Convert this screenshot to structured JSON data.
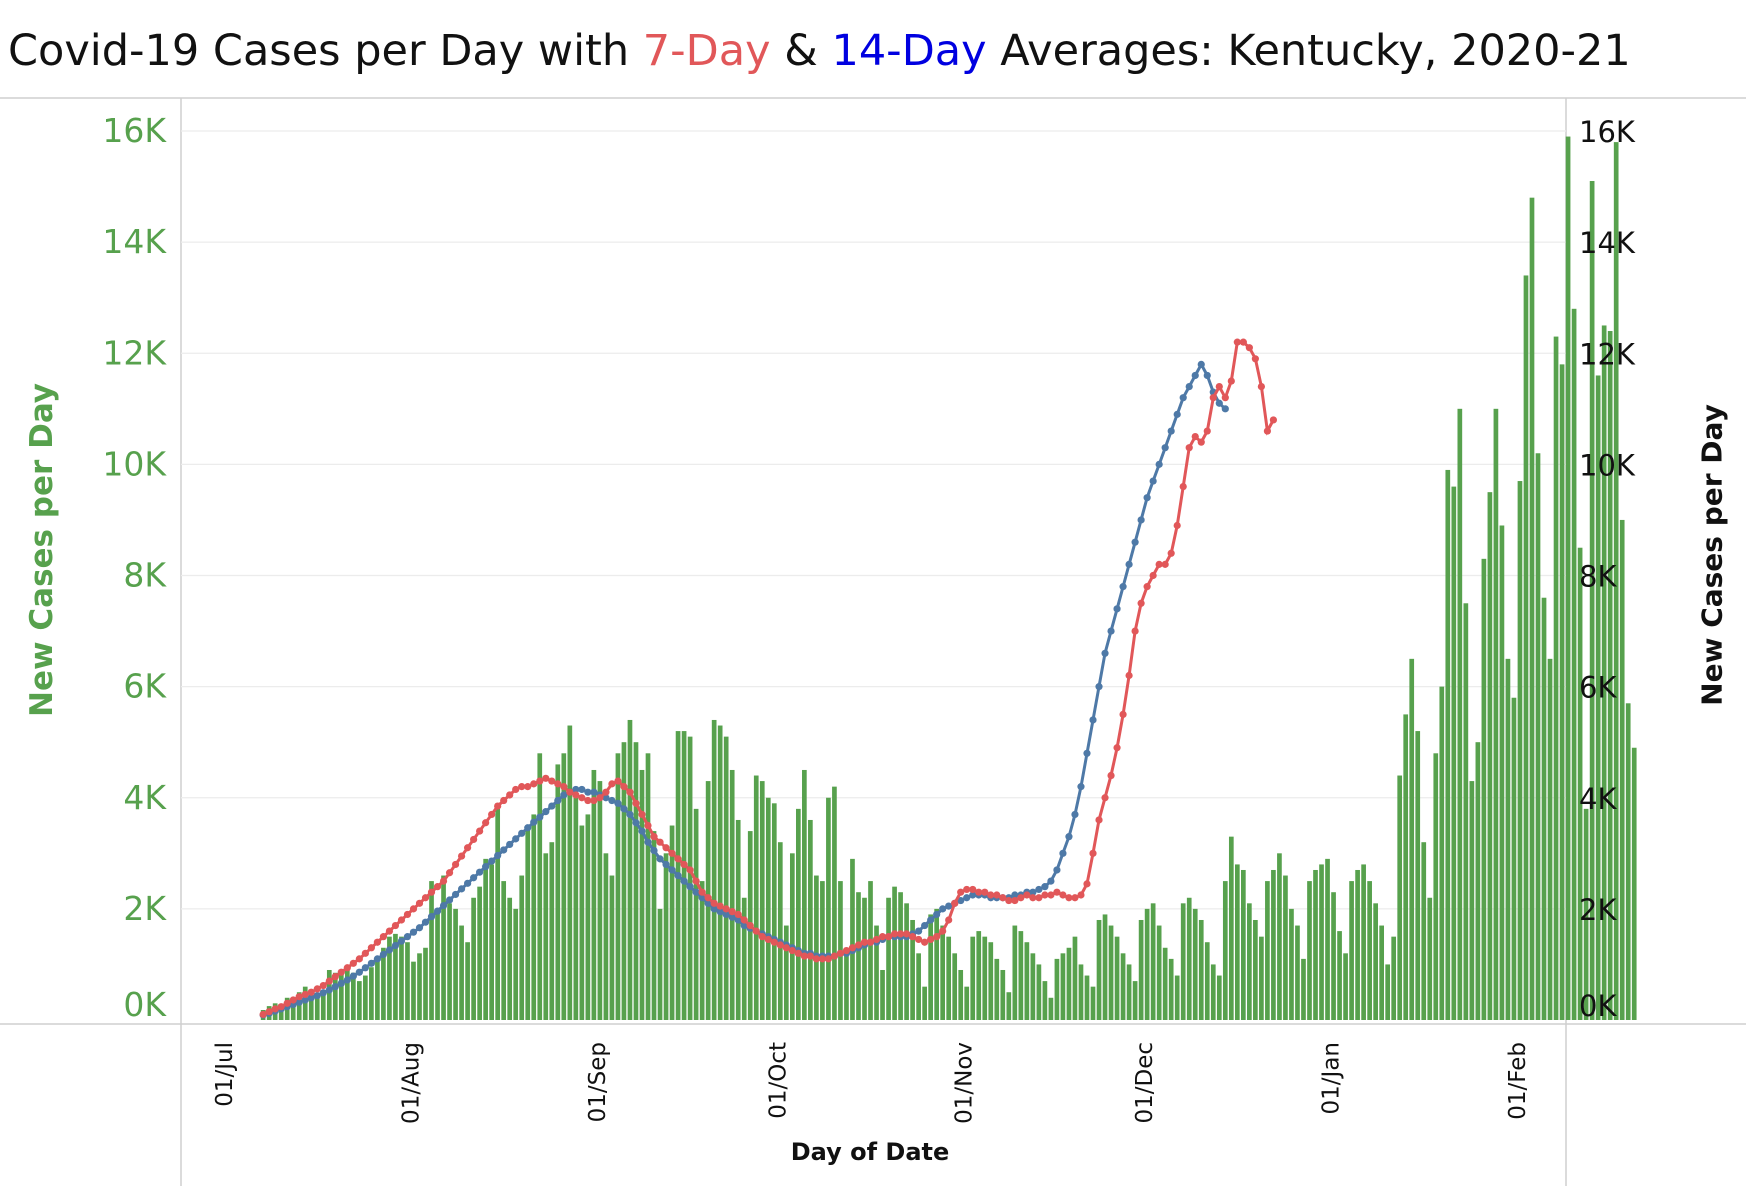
{
  "title": {
    "part1": "Covid-19 Cases per Day with ",
    "seven_day": "7-Day",
    "amp": " & ",
    "fourteen_day": "14-Day",
    "part2": " Averages: Kentucky,  2020-21"
  },
  "colors": {
    "bars": "#57a14d",
    "seven_day": "#e15759",
    "fourteen_day": "#4e79a7",
    "left_axis": "#57a14d",
    "right_axis": "#111111"
  },
  "chart_data": {
    "type": "bar",
    "title": "Covid-19 Cases per Day with 7-Day & 14-Day Averages: Kentucky,  2020-21",
    "xlabel": "Day of Date",
    "ylabel": "New Cases per Day",
    "ylabel_right": "New Cases per Day",
    "ylim": [
      0,
      16000
    ],
    "grid": true,
    "x_start_date": "2020-06-27",
    "x_end_date": "2021-02-04",
    "x_tick_dates": [
      "2020-07-01",
      "2020-08-01",
      "2020-09-01",
      "2020-10-01",
      "2020-11-01",
      "2020-12-01",
      "2021-01-01",
      "2021-02-01"
    ],
    "x_tick_labels": [
      "01/Jul",
      "01/Aug",
      "01/Sep",
      "01/Oct",
      "01/Nov",
      "01/Dec",
      "01/Jan",
      "01/Feb"
    ],
    "y_ticks": [
      0,
      2000,
      4000,
      6000,
      8000,
      10000,
      12000,
      14000,
      16000
    ],
    "y_tick_labels": [
      "0K",
      "2K",
      "4K",
      "6K",
      "8K",
      "10K",
      "12K",
      "14K",
      "16K"
    ],
    "first_bar_date": "2020-07-07",
    "series": [
      {
        "name": "New Cases per Day",
        "values": [
          180,
          250,
          300,
          280,
          400,
          350,
          500,
          600,
          450,
          400,
          500,
          900,
          850,
          880,
          900,
          850,
          700,
          800,
          950,
          1100,
          1300,
          1500,
          1550,
          1500,
          1400,
          1050,
          1200,
          1300,
          2500,
          2000,
          2600,
          2100,
          2000,
          1700,
          1400,
          2200,
          2400,
          2900,
          2800,
          3900,
          2500,
          2200,
          2000,
          2600,
          3500,
          3700,
          4800,
          3000,
          3200,
          4600,
          4800,
          5300,
          4000,
          3500,
          3700,
          4500,
          4300,
          3000,
          2600,
          4800,
          5000,
          5400,
          5000,
          4500,
          4800,
          3400,
          2000,
          3000,
          3500,
          5200,
          5200,
          5100,
          3800,
          2500,
          4300,
          5400,
          5300,
          5100,
          4500,
          3600,
          2200,
          3400,
          4400,
          4300,
          4000,
          3900,
          3200,
          1700,
          3000,
          3800,
          4500,
          3600,
          2600,
          2500,
          4000,
          4200,
          2500,
          1300,
          2900,
          2300,
          2200,
          2500,
          1700,
          900,
          2200,
          2400,
          2300,
          2100,
          1800,
          1200,
          600,
          1900,
          2000,
          1700,
          1500,
          1200,
          900,
          600,
          1500,
          1600,
          1500,
          1400,
          1100,
          900,
          500,
          1700,
          1600,
          1400,
          1200,
          1000,
          700,
          400,
          1100,
          1200,
          1300,
          1500,
          1000,
          800,
          600,
          1800,
          1900,
          1700,
          1500,
          1200,
          1000,
          700,
          1800,
          2000,
          2100,
          1700,
          1300,
          1100,
          800,
          2100,
          2200,
          2000,
          1800,
          1400,
          1000,
          800,
          2500,
          3300,
          2800,
          2700,
          2100,
          1800,
          1500,
          2500,
          2700,
          3000,
          2600,
          2000,
          1700,
          1100,
          2500,
          2700,
          2800,
          2900,
          2300,
          1600,
          1200,
          2500,
          2700,
          2800,
          2500,
          2100,
          1700,
          1000,
          1500,
          4400,
          5500,
          6500,
          5200,
          3200,
          2200,
          4800,
          6000,
          9900,
          9600,
          11000,
          7500,
          4300,
          5000,
          8300,
          9500,
          11000,
          8900,
          6500,
          5800,
          9700,
          13400,
          14800,
          10200,
          7600,
          6500,
          12300,
          11800,
          15900,
          12800,
          8500,
          3800,
          15100,
          11600,
          12500,
          12400,
          15800,
          9000,
          5700,
          4900
        ],
        "role": "bars"
      },
      {
        "name": "7-Day",
        "values": [
          100,
          150,
          200,
          240,
          300,
          360,
          420,
          460,
          500,
          560,
          620,
          700,
          780,
          860,
          940,
          1020,
          1100,
          1200,
          1300,
          1400,
          1500,
          1600,
          1700,
          1800,
          1900,
          2000,
          2100,
          2200,
          2300,
          2400,
          2500,
          2650,
          2800,
          2950,
          3100,
          3250,
          3400,
          3550,
          3700,
          3850,
          3950,
          4050,
          4150,
          4200,
          4200,
          4250,
          4300,
          4350,
          4300,
          4250,
          4200,
          4100,
          4050,
          4000,
          3950,
          3950,
          4000,
          4100,
          4250,
          4300,
          4200,
          4100,
          3900,
          3700,
          3500,
          3300,
          3200,
          3100,
          3000,
          2900,
          2800,
          2700,
          2500,
          2300,
          2200,
          2100,
          2050,
          2000,
          1950,
          1900,
          1800,
          1700,
          1600,
          1500,
          1450,
          1400,
          1350,
          1300,
          1250,
          1200,
          1150,
          1150,
          1100,
          1100,
          1100,
          1150,
          1200,
          1250,
          1300,
          1350,
          1400,
          1400,
          1450,
          1500,
          1500,
          1550,
          1550,
          1550,
          1500,
          1450,
          1400,
          1450,
          1500,
          1600,
          1800,
          2100,
          2300,
          2350,
          2350,
          2300,
          2300,
          2250,
          2250,
          2200,
          2150,
          2150,
          2200,
          2250,
          2200,
          2200,
          2250,
          2250,
          2300,
          2250,
          2200,
          2200,
          2250,
          2450,
          3000,
          3600,
          4000,
          4400,
          4900,
          5500,
          6200,
          7000,
          7500,
          7800,
          8000,
          8200,
          8200,
          8400,
          8900,
          9600,
          10300,
          10500,
          10400,
          10600,
          11200,
          11400,
          11200,
          11500,
          12200,
          12200,
          12100,
          11900,
          11400,
          10600,
          10800
        ],
        "role": "line"
      },
      {
        "name": "14-Day",
        "values": [
          90,
          120,
          160,
          200,
          240,
          280,
          320,
          360,
          400,
          440,
          490,
          540,
          600,
          660,
          720,
          790,
          860,
          940,
          1020,
          1100,
          1180,
          1260,
          1340,
          1420,
          1500,
          1580,
          1660,
          1760,
          1860,
          1960,
          2060,
          2160,
          2260,
          2360,
          2460,
          2560,
          2660,
          2760,
          2860,
          2960,
          3060,
          3160,
          3260,
          3360,
          3460,
          3560,
          3650,
          3750,
          3850,
          3950,
          4050,
          4100,
          4150,
          4150,
          4100,
          4100,
          4050,
          4000,
          3950,
          3900,
          3800,
          3700,
          3550,
          3400,
          3200,
          3050,
          2900,
          2800,
          2700,
          2600,
          2500,
          2400,
          2300,
          2200,
          2100,
          2000,
          1950,
          1900,
          1850,
          1800,
          1700,
          1650,
          1600,
          1550,
          1500,
          1450,
          1400,
          1350,
          1300,
          1250,
          1200,
          1200,
          1150,
          1150,
          1150,
          1150,
          1200,
          1200,
          1250,
          1300,
          1350,
          1400,
          1400,
          1450,
          1500,
          1500,
          1500,
          1500,
          1550,
          1600,
          1700,
          1800,
          1900,
          2000,
          2050,
          2100,
          2150,
          2200,
          2250,
          2250,
          2250,
          2200,
          2200,
          2200,
          2200,
          2250,
          2250,
          2300,
          2300,
          2350,
          2400,
          2500,
          2700,
          3000,
          3300,
          3700,
          4200,
          4800,
          5400,
          6000,
          6600,
          7000,
          7400,
          7800,
          8200,
          8600,
          9000,
          9400,
          9700,
          10000,
          10300,
          10600,
          10900,
          11200,
          11400,
          11600,
          11800,
          11600,
          11300,
          11100,
          11000
        ],
        "role": "line"
      }
    ]
  },
  "axis_labels": {
    "left": "New Cases per Day",
    "right": "New Cases per Day",
    "x": "Day of Date"
  }
}
